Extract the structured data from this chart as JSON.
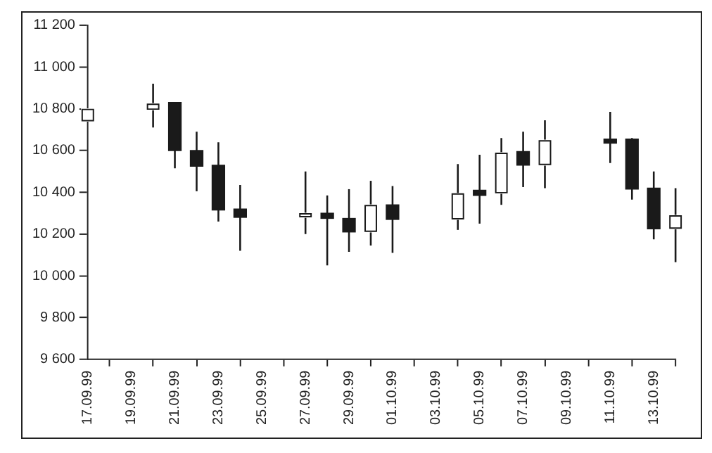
{
  "chart_data": {
    "type": "candlestick",
    "x": [
      "1999-09-17",
      "1999-09-20",
      "1999-09-21",
      "1999-09-22",
      "1999-09-23",
      "1999-09-24",
      "1999-09-27",
      "1999-09-28",
      "1999-09-29",
      "1999-09-30",
      "1999-10-01",
      "1999-10-04",
      "1999-10-05",
      "1999-10-06",
      "1999-10-07",
      "1999-10-08",
      "1999-10-11",
      "1999-10-12",
      "1999-10-13",
      "1999-10-14"
    ],
    "ohlc": [
      [
        10740,
        10800,
        10740,
        10800
      ],
      [
        10795,
        10920,
        10710,
        10825
      ],
      [
        10830,
        10830,
        10515,
        10600
      ],
      [
        10600,
        10690,
        10405,
        10525
      ],
      [
        10530,
        10640,
        10260,
        10315
      ],
      [
        10320,
        10435,
        10120,
        10280
      ],
      [
        10280,
        10500,
        10200,
        10300
      ],
      [
        10300,
        10385,
        10050,
        10275
      ],
      [
        10275,
        10415,
        10115,
        10210
      ],
      [
        10210,
        10455,
        10145,
        10340
      ],
      [
        10340,
        10430,
        10110,
        10270
      ],
      [
        10270,
        10535,
        10220,
        10395
      ],
      [
        10410,
        10580,
        10250,
        10385
      ],
      [
        10395,
        10660,
        10340,
        10590
      ],
      [
        10595,
        10690,
        10425,
        10530
      ],
      [
        10530,
        10745,
        10420,
        10650
      ],
      [
        10655,
        10785,
        10540,
        10635
      ],
      [
        10655,
        10660,
        10365,
        10415
      ],
      [
        10420,
        10500,
        10175,
        10225
      ],
      [
        10225,
        10420,
        10065,
        10290
      ]
    ],
    "colors": [
      "#ffffff",
      "#ffffff",
      "#1a1a1a",
      "#1a1a1a",
      "#1a1a1a",
      "#1a1a1a",
      "#ffffff",
      "#1a1a1a",
      "#1a1a1a",
      "#ffffff",
      "#1a1a1a",
      "#ffffff",
      "#1a1a1a",
      "#ffffff",
      "#1a1a1a",
      "#ffffff",
      "#1a1a1a",
      "#1a1a1a",
      "#1a1a1a",
      "#ffffff"
    ],
    "xlim": [
      "1999-09-17",
      "1999-10-14"
    ],
    "xticks": [
      {
        "value": "1999-09-17",
        "label": "17.09.99"
      },
      {
        "value": "1999-09-19",
        "label": "19.09.99"
      },
      {
        "value": "1999-09-21",
        "label": "21.09.99"
      },
      {
        "value": "1999-09-23",
        "label": "23.09.99"
      },
      {
        "value": "1999-09-25",
        "label": "25.09.99"
      },
      {
        "value": "1999-09-27",
        "label": "27.09.99"
      },
      {
        "value": "1999-09-29",
        "label": "29.09.99"
      },
      {
        "value": "1999-10-01",
        "label": "01.10.99"
      },
      {
        "value": "1999-10-03",
        "label": "03.10.99"
      },
      {
        "value": "1999-10-05",
        "label": "05.10.99"
      },
      {
        "value": "1999-10-07",
        "label": "07.10.99"
      },
      {
        "value": "1999-10-09",
        "label": "09.10.99"
      },
      {
        "value": "1999-10-11",
        "label": "11.10.99"
      },
      {
        "value": "1999-10-13",
        "label": "13.10.99"
      }
    ],
    "ylim": [
      9600,
      11200
    ],
    "yticks": [
      {
        "value": 9600,
        "label": "9 600"
      },
      {
        "value": 9800,
        "label": "9 800"
      },
      {
        "value": 10000,
        "label": "10 000"
      },
      {
        "value": 10200,
        "label": "10 200"
      },
      {
        "value": 10400,
        "label": "10 400"
      },
      {
        "value": 10600,
        "label": "10 600"
      },
      {
        "value": 10800,
        "label": "10 800"
      },
      {
        "value": 11000,
        "label": "11 000"
      },
      {
        "value": 11200,
        "label": "11 200"
      }
    ],
    "grid": false,
    "legend": false
  }
}
